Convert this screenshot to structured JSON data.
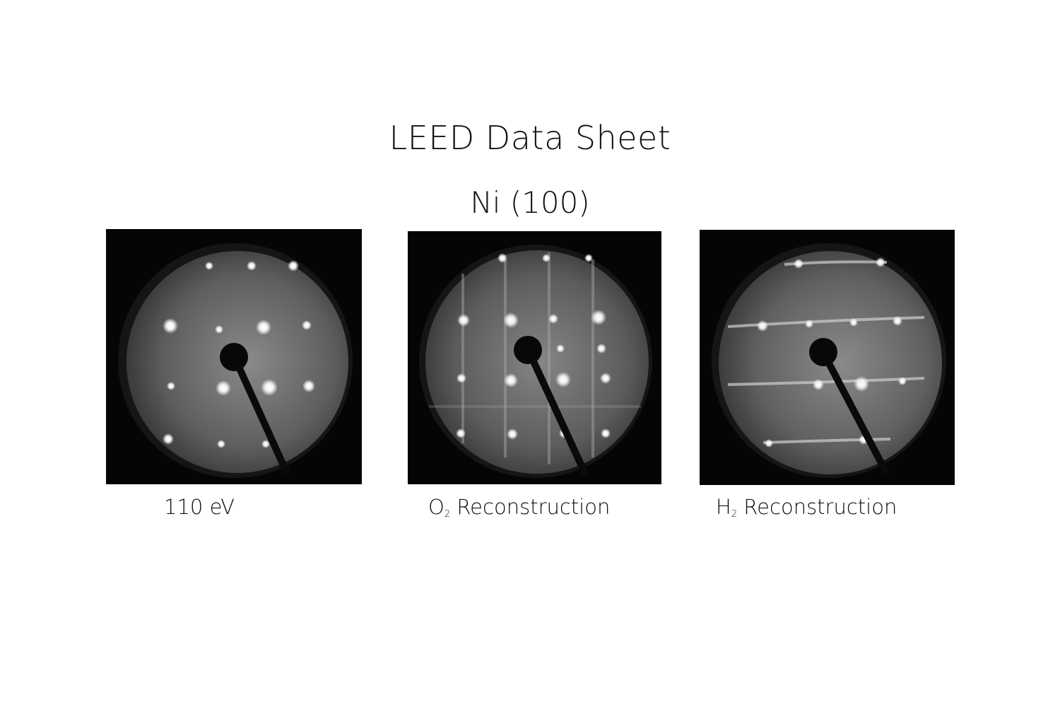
{
  "sheet": {
    "title": "LEED Data Sheet",
    "subtitle": "Ni (100)"
  },
  "panels": [
    {
      "caption_text": "110 eV"
    },
    {
      "caption_prefix": "O",
      "caption_sub": "2",
      "caption_text": " Reconstruction"
    },
    {
      "caption_prefix": "H",
      "caption_sub": "2",
      "caption_text": " Reconstruction"
    }
  ],
  "colors": {
    "background": "#ffffff",
    "text": "#111111",
    "screen_glow": "#7a7a7a",
    "spot": "#ffffff"
  }
}
